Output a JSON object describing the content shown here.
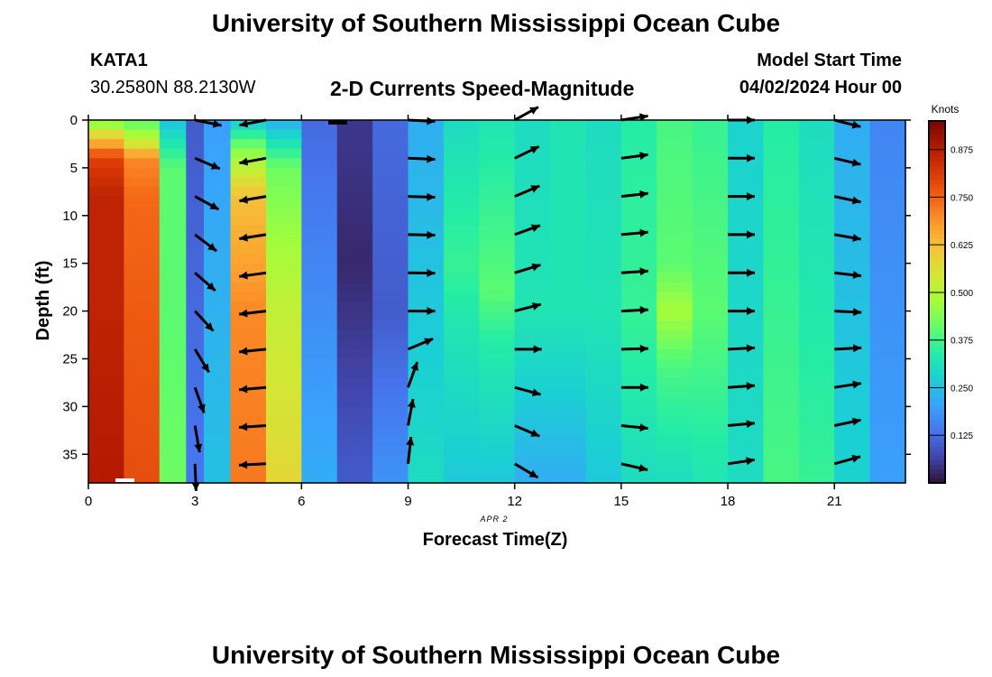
{
  "header": {
    "title": "University of Southern Mississippi Ocean Cube",
    "station": "KATA1",
    "location": "30.2580N  88.2130W",
    "plot_name": "2-D Currents Speed-Magnitude",
    "start_label": "Model Start Time",
    "start_value": "04/02/2024 Hour 00"
  },
  "footer": {
    "title": "University of Southern Mississippi Ocean Cube"
  },
  "chart_data": {
    "type": "heatmap",
    "xlabel": "Forecast Time(Z)",
    "ylabel": "Depth (ft)",
    "date_label": "APR 2",
    "x_ticks": [
      "0",
      "3",
      "6",
      "9",
      "12",
      "15",
      "18",
      "21"
    ],
    "y_ticks": [
      "0",
      "5",
      "10",
      "15",
      "20",
      "25",
      "30",
      "35"
    ],
    "xlim": [
      0,
      23
    ],
    "ylim": [
      38,
      0
    ],
    "colorbar": {
      "label": "Knots",
      "ticks": [
        "0.125",
        "0.250",
        "0.375",
        "0.500",
        "0.625",
        "0.750",
        "0.875"
      ],
      "range": [
        0.0,
        0.95
      ]
    },
    "color_stops": [
      "#30123b",
      "#4145ab",
      "#4675ed",
      "#39a2fc",
      "#1bcfd4",
      "#24eca6",
      "#61fc6c",
      "#a4fc3b",
      "#d1e834",
      "#f3c63a",
      "#fe9b2d",
      "#f36315",
      "#d93806",
      "#b11901",
      "#7a0403"
    ],
    "columns": [
      {
        "t": 0.5,
        "profile": [
          [
            0,
            0.42
          ],
          [
            2,
            0.62
          ],
          [
            4,
            0.8
          ],
          [
            8,
            0.86
          ],
          [
            20,
            0.86
          ],
          [
            38,
            0.88
          ]
        ]
      },
      {
        "t": 1.5,
        "profile": [
          [
            0,
            0.4
          ],
          [
            2,
            0.5
          ],
          [
            4,
            0.7
          ],
          [
            8,
            0.74
          ],
          [
            20,
            0.76
          ],
          [
            38,
            0.78
          ]
        ]
      },
      {
        "t": 2.5,
        "profile": [
          [
            0,
            0.25
          ],
          [
            5,
            0.4
          ],
          [
            20,
            0.4
          ],
          [
            38,
            0.42
          ]
        ]
      },
      {
        "t": 3.0,
        "profile": [
          [
            0,
            0.1
          ],
          [
            38,
            0.14
          ]
        ]
      },
      {
        "t": 3.5,
        "profile": [
          [
            0,
            0.2
          ],
          [
            38,
            0.25
          ]
        ]
      },
      {
        "t": 4.5,
        "profile": [
          [
            0,
            0.26
          ],
          [
            3,
            0.44
          ],
          [
            8,
            0.62
          ],
          [
            20,
            0.7
          ],
          [
            38,
            0.72
          ]
        ]
      },
      {
        "t": 5.5,
        "profile": [
          [
            0,
            0.22
          ],
          [
            5,
            0.42
          ],
          [
            20,
            0.52
          ],
          [
            38,
            0.58
          ]
        ]
      },
      {
        "t": 6.5,
        "profile": [
          [
            0,
            0.12
          ],
          [
            38,
            0.22
          ]
        ]
      },
      {
        "t": 7.5,
        "profile": [
          [
            0,
            0.05
          ],
          [
            15,
            0.03
          ],
          [
            38,
            0.1
          ]
        ]
      },
      {
        "t": 8.5,
        "profile": [
          [
            0,
            0.12
          ],
          [
            20,
            0.1
          ],
          [
            38,
            0.18
          ]
        ]
      },
      {
        "t": 9.5,
        "profile": [
          [
            0,
            0.22
          ],
          [
            38,
            0.3
          ]
        ]
      },
      {
        "t": 10.5,
        "profile": [
          [
            0,
            0.3
          ],
          [
            15,
            0.36
          ],
          [
            22,
            0.32
          ],
          [
            38,
            0.26
          ]
        ]
      },
      {
        "t": 11.5,
        "profile": [
          [
            0,
            0.32
          ],
          [
            18,
            0.4
          ],
          [
            23,
            0.34
          ],
          [
            38,
            0.26
          ]
        ]
      },
      {
        "t": 12.5,
        "profile": [
          [
            0,
            0.3
          ],
          [
            20,
            0.32
          ],
          [
            38,
            0.22
          ]
        ]
      },
      {
        "t": 13.5,
        "profile": [
          [
            0,
            0.32
          ],
          [
            20,
            0.32
          ],
          [
            38,
            0.22
          ]
        ]
      },
      {
        "t": 14.5,
        "profile": [
          [
            0,
            0.3
          ],
          [
            20,
            0.32
          ],
          [
            38,
            0.26
          ]
        ]
      },
      {
        "t": 15.5,
        "profile": [
          [
            0,
            0.34
          ],
          [
            20,
            0.36
          ],
          [
            38,
            0.3
          ]
        ]
      },
      {
        "t": 16.5,
        "profile": [
          [
            0,
            0.38
          ],
          [
            15,
            0.4
          ],
          [
            20,
            0.48
          ],
          [
            26,
            0.38
          ],
          [
            38,
            0.3
          ]
        ]
      },
      {
        "t": 17.5,
        "profile": [
          [
            0,
            0.36
          ],
          [
            20,
            0.4
          ],
          [
            38,
            0.32
          ]
        ]
      },
      {
        "t": 18.5,
        "profile": [
          [
            0,
            0.28
          ],
          [
            38,
            0.3
          ]
        ]
      },
      {
        "t": 19.5,
        "profile": [
          [
            0,
            0.34
          ],
          [
            38,
            0.38
          ]
        ]
      },
      {
        "t": 20.5,
        "profile": [
          [
            0,
            0.3
          ],
          [
            38,
            0.36
          ]
        ]
      },
      {
        "t": 21.5,
        "profile": [
          [
            0,
            0.22
          ],
          [
            38,
            0.28
          ]
        ]
      },
      {
        "t": 22.5,
        "profile": [
          [
            0,
            0.16
          ],
          [
            38,
            0.2
          ]
        ]
      }
    ],
    "vectors": [
      {
        "t": 3.0,
        "dir": [
          [
            0,
            -0.2
          ],
          [
            4,
            -0.4
          ],
          [
            8,
            -0.5
          ],
          [
            12,
            -0.65
          ],
          [
            18,
            -0.75
          ],
          [
            22,
            -0.9
          ],
          [
            26,
            -1.15
          ],
          [
            30,
            -1.3
          ],
          [
            34,
            -1.5
          ],
          [
            38,
            -1.55
          ]
        ]
      },
      {
        "t": 5.0,
        "dir": [
          [
            0,
            -2.95
          ],
          [
            10,
            -2.98
          ],
          [
            38,
            -3.1
          ]
        ]
      },
      {
        "t": 9.0,
        "dir": [
          [
            0,
            -0.05
          ],
          [
            20,
            0
          ],
          [
            24,
            0.4
          ],
          [
            26,
            1.1
          ],
          [
            30,
            1.35
          ],
          [
            38,
            1.5
          ]
        ]
      },
      {
        "t": 12.0,
        "dir": [
          [
            0,
            0.5
          ],
          [
            20,
            0.25
          ],
          [
            24,
            0
          ],
          [
            26,
            -0.2
          ],
          [
            32,
            -0.4
          ],
          [
            38,
            -0.6
          ]
        ]
      },
      {
        "t": 15.0,
        "dir": [
          [
            0,
            0.15
          ],
          [
            20,
            0.05
          ],
          [
            28,
            0
          ],
          [
            34,
            -0.15
          ],
          [
            38,
            -0.3
          ]
        ]
      },
      {
        "t": 18.0,
        "dir": [
          [
            0,
            0
          ],
          [
            20,
            0
          ],
          [
            24,
            0.05
          ],
          [
            34,
            0.1
          ],
          [
            38,
            0.2
          ]
        ]
      },
      {
        "t": 21.0,
        "dir": [
          [
            0,
            -0.25
          ],
          [
            10,
            -0.2
          ],
          [
            20,
            -0.05
          ],
          [
            28,
            0.15
          ],
          [
            38,
            0.3
          ]
        ]
      }
    ]
  }
}
